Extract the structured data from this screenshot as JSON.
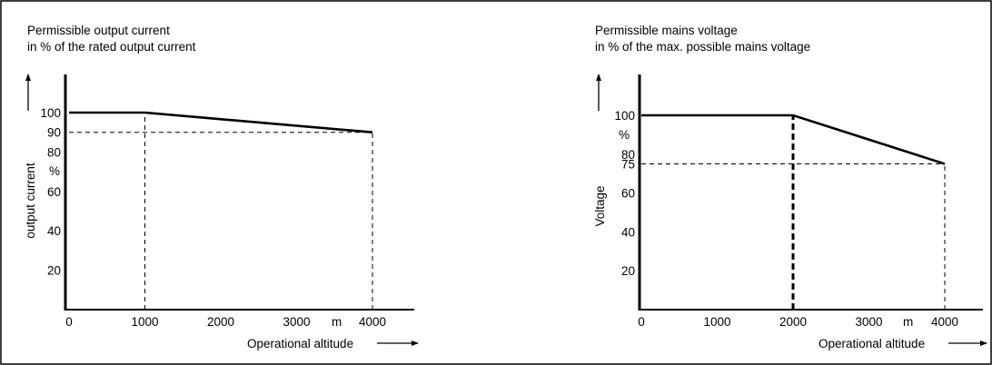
{
  "colors": {
    "line": "#000000",
    "background": "#ffffff"
  },
  "chart_data": [
    {
      "type": "line",
      "title_lines": [
        "Permissible output current",
        "in % of the rated output current"
      ],
      "ylabel": "output current",
      "y_unit": "%",
      "xlabel": "Operational altitude",
      "x_unit": "m",
      "xlim": [
        0,
        4500
      ],
      "ylim": [
        0,
        120
      ],
      "x_ticks": [
        {
          "value": 0,
          "label": "0"
        },
        {
          "value": 1000,
          "label": "1000"
        },
        {
          "value": 2000,
          "label": "2000"
        },
        {
          "value": 3000,
          "label": "3000"
        },
        {
          "value": 4000,
          "label": "4000"
        }
      ],
      "y_ticks": [
        {
          "value": 20,
          "label": "20"
        },
        {
          "value": 40,
          "label": "40"
        },
        {
          "value": 60,
          "label": "60"
        },
        {
          "value": 80,
          "label": "80"
        },
        {
          "value": 90,
          "label": "90"
        },
        {
          "value": 100,
          "label": "100"
        }
      ],
      "series": [
        {
          "x": [
            0,
            1000,
            4000
          ],
          "y": [
            100,
            100,
            90
          ]
        }
      ],
      "reference_lines": [
        {
          "from": [
            0,
            90
          ],
          "to": [
            4000,
            90
          ]
        },
        {
          "from": [
            1000,
            0
          ],
          "to": [
            1000,
            100
          ]
        },
        {
          "from": [
            4000,
            0
          ],
          "to": [
            4000,
            90
          ]
        }
      ],
      "grid": false
    },
    {
      "type": "line",
      "title_lines": [
        "Permissible mains voltage",
        "in % of the max. possible mains voltage"
      ],
      "ylabel": "Voltage",
      "y_unit": "%",
      "xlabel": "Operational altitude",
      "x_unit": "m",
      "xlim": [
        0,
        4500
      ],
      "ylim": [
        0,
        120
      ],
      "x_ticks": [
        {
          "value": 0,
          "label": "0"
        },
        {
          "value": 1000,
          "label": "1000"
        },
        {
          "value": 2000,
          "label": "2000"
        },
        {
          "value": 3000,
          "label": "3000"
        },
        {
          "value": 4000,
          "label": "4000"
        }
      ],
      "y_ticks": [
        {
          "value": 20,
          "label": "20"
        },
        {
          "value": 40,
          "label": "40"
        },
        {
          "value": 60,
          "label": "60"
        },
        {
          "value": 75,
          "label": "75"
        },
        {
          "value": 80,
          "label": "80"
        },
        {
          "value": 100,
          "label": "100"
        }
      ],
      "series": [
        {
          "x": [
            0,
            2000,
            4000
          ],
          "y": [
            100,
            100,
            75
          ]
        }
      ],
      "reference_lines": [
        {
          "from": [
            0,
            75
          ],
          "to": [
            4000,
            75
          ]
        },
        {
          "from": [
            2000,
            0
          ],
          "to": [
            2000,
            100
          ],
          "heavy": true
        },
        {
          "from": [
            4000,
            0
          ],
          "to": [
            4000,
            75
          ]
        }
      ],
      "grid": false
    }
  ]
}
